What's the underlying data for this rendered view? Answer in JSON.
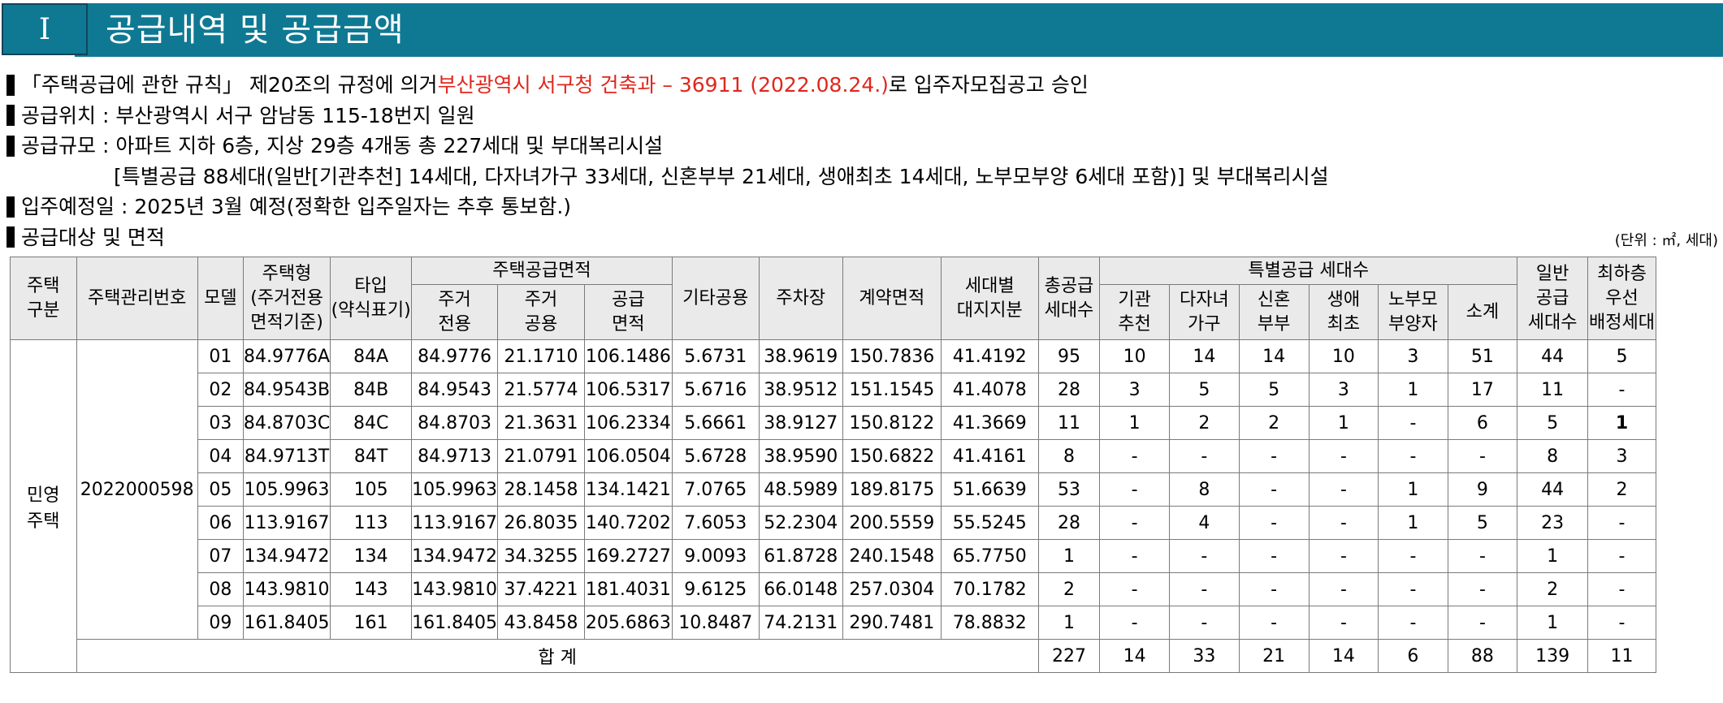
{
  "header": {
    "number": "Ⅰ",
    "title": "공급내역 및 공급금액"
  },
  "intro": {
    "line1_a": "「주택공급에 관한 규칙」 제20조의 규정에 의거 ",
    "line1_red": "부산광역시 서구청 건축과 – 36911 (2022.08.24.)",
    "line1_b": "로 입주자모집공고 승인",
    "line2": "공급위치 : 부산광역시 서구 암남동 115-18번지 일원",
    "line3": "공급규모 : 아파트 지하 6층, 지상 29층 4개동 총 227세대 및 부대복리시설",
    "line4": "[특별공급 88세대(일반[기관추천] 14세대, 다자녀가구 33세대, 신혼부부 21세대, 생애최초 14세대, 노부모부양 6세대 포함)] 및 부대복리시설",
    "line5": "입주예정일 : 2025년 3월 예정(정확한 입주일자는 추후 통보함.)",
    "line6": "공급대상 및 면적",
    "unit": "(단위 : ㎡, 세대)"
  },
  "table": {
    "h_type": "주택\n구분",
    "h_mgmt": "주택관리번호",
    "h_model": "모델",
    "h_housing": "주택형\n(주거전용\n면적기준)",
    "h_typeabbr": "타입\n(약식표기)",
    "h_supply_area": "주택공급면적",
    "h_excl": "주거\n전용",
    "h_common": "주거\n공용",
    "h_supply": "공급\n면적",
    "h_other": "기타공용",
    "h_parking": "주차장",
    "h_contract": "계약면적",
    "h_land": "세대별\n대지지분",
    "h_total": "총공급\n세대수",
    "h_special": "특별공급 세대수",
    "h_inst": "기관\n추천",
    "h_multi": "다자녀\n가구",
    "h_newly": "신혼\n부부",
    "h_first": "생애\n최초",
    "h_elder": "노부모\n부양자",
    "h_subtotal": "소계",
    "h_general": "일반\n공급\n세대수",
    "h_lowest": "최하층\n우선\n배정세대",
    "housing_type": "민영\n주택",
    "mgmt_no": "2022000598",
    "rows": [
      [
        "01",
        "84.9776A",
        "84A",
        "84.9776",
        "21.1710",
        "106.1486",
        "5.6731",
        "38.9619",
        "150.7836",
        "41.4192",
        "95",
        "10",
        "14",
        "14",
        "10",
        "3",
        "51",
        "44",
        "5"
      ],
      [
        "02",
        "84.9543B",
        "84B",
        "84.9543",
        "21.5774",
        "106.5317",
        "5.6716",
        "38.9512",
        "151.1545",
        "41.4078",
        "28",
        "3",
        "5",
        "5",
        "3",
        "1",
        "17",
        "11",
        "-"
      ],
      [
        "03",
        "84.8703C",
        "84C",
        "84.8703",
        "21.3631",
        "106.2334",
        "5.6661",
        "38.9127",
        "150.8122",
        "41.3669",
        "11",
        "1",
        "2",
        "2",
        "1",
        "-",
        "6",
        "5",
        "1"
      ],
      [
        "04",
        "84.9713T",
        "84T",
        "84.9713",
        "21.0791",
        "106.0504",
        "5.6728",
        "38.9590",
        "150.6822",
        "41.4161",
        "8",
        "-",
        "-",
        "-",
        "-",
        "-",
        "-",
        "8",
        "3"
      ],
      [
        "05",
        "105.9963",
        "105",
        "105.9963",
        "28.1458",
        "134.1421",
        "7.0765",
        "48.5989",
        "189.8175",
        "51.6639",
        "53",
        "-",
        "8",
        "-",
        "-",
        "1",
        "9",
        "44",
        "2"
      ],
      [
        "06",
        "113.9167",
        "113",
        "113.9167",
        "26.8035",
        "140.7202",
        "7.6053",
        "52.2304",
        "200.5559",
        "55.5245",
        "28",
        "-",
        "4",
        "-",
        "-",
        "1",
        "5",
        "23",
        "-"
      ],
      [
        "07",
        "134.9472",
        "134",
        "134.9472",
        "34.3255",
        "169.2727",
        "9.0093",
        "61.8728",
        "240.1548",
        "65.7750",
        "1",
        "-",
        "-",
        "-",
        "-",
        "-",
        "-",
        "1",
        "-"
      ],
      [
        "08",
        "143.9810",
        "143",
        "143.9810",
        "37.4221",
        "181.4031",
        "9.6125",
        "66.0148",
        "257.0304",
        "70.1782",
        "2",
        "-",
        "-",
        "-",
        "-",
        "-",
        "-",
        "2",
        "-"
      ],
      [
        "09",
        "161.8405",
        "161",
        "161.8405",
        "43.8458",
        "205.6863",
        "10.8487",
        "74.2131",
        "290.7481",
        "78.8832",
        "1",
        "-",
        "-",
        "-",
        "-",
        "-",
        "-",
        "1",
        "-"
      ]
    ],
    "total_label": "합 계",
    "totals": [
      "227",
      "14",
      "33",
      "21",
      "14",
      "6",
      "88",
      "139",
      "11"
    ]
  }
}
